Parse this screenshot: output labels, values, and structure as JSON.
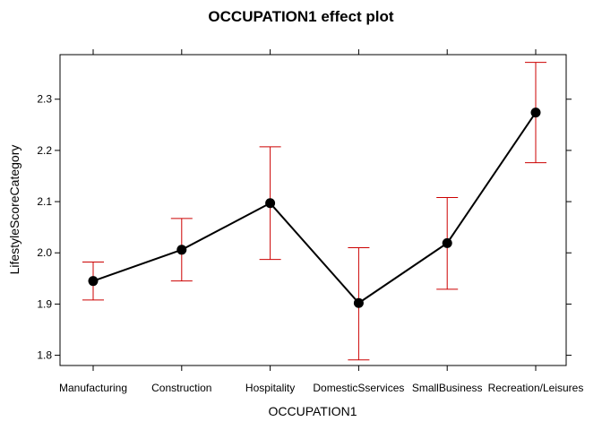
{
  "chart_data": {
    "type": "line",
    "title": "OCCUPATION1 effect plot",
    "xlabel": "OCCUPATION1",
    "ylabel": "LifestyleScoreCategory",
    "categories": [
      "Manufacturing",
      "Construction",
      "Hospitality",
      "DomesticSservices",
      "SmallBusiness",
      "Recreation/Leisures"
    ],
    "values": [
      1.945,
      2.006,
      2.097,
      1.902,
      2.019,
      2.274
    ],
    "lower": [
      1.908,
      1.945,
      1.987,
      1.791,
      1.929,
      2.176
    ],
    "upper": [
      1.982,
      2.067,
      2.207,
      2.01,
      2.108,
      2.372
    ],
    "yticks": [
      1.8,
      1.9,
      2.0,
      2.1,
      2.2,
      2.3
    ],
    "ylim": [
      1.78,
      2.387
    ],
    "grid": false,
    "colors": {
      "line": "#000000",
      "points": "#000000",
      "error_bars": "#cc0000"
    }
  }
}
